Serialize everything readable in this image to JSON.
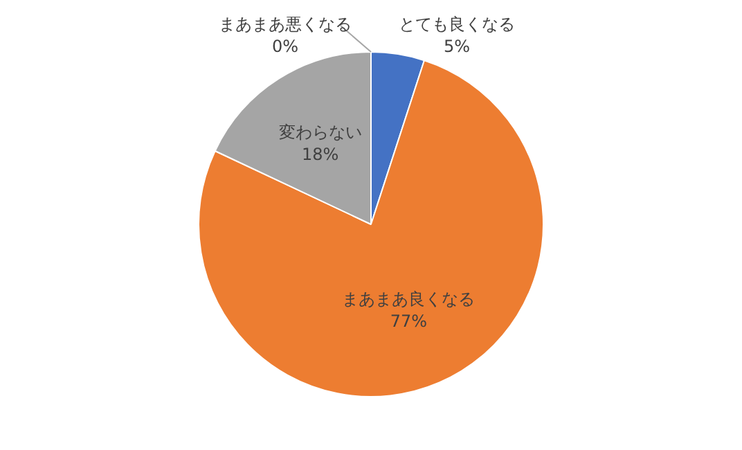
{
  "chart_data": {
    "type": "pie",
    "categories": [
      "とても良くなる",
      "まあまあ良くなる",
      "変わらない",
      "まあまあ悪くなる"
    ],
    "values": [
      5,
      77,
      18,
      0
    ],
    "colors": [
      "#4472c4",
      "#ed7d31",
      "#a5a5a5",
      "#ffc000"
    ],
    "value_labels": [
      "5%",
      "77%",
      "18%",
      "0%"
    ],
    "legend": false
  }
}
